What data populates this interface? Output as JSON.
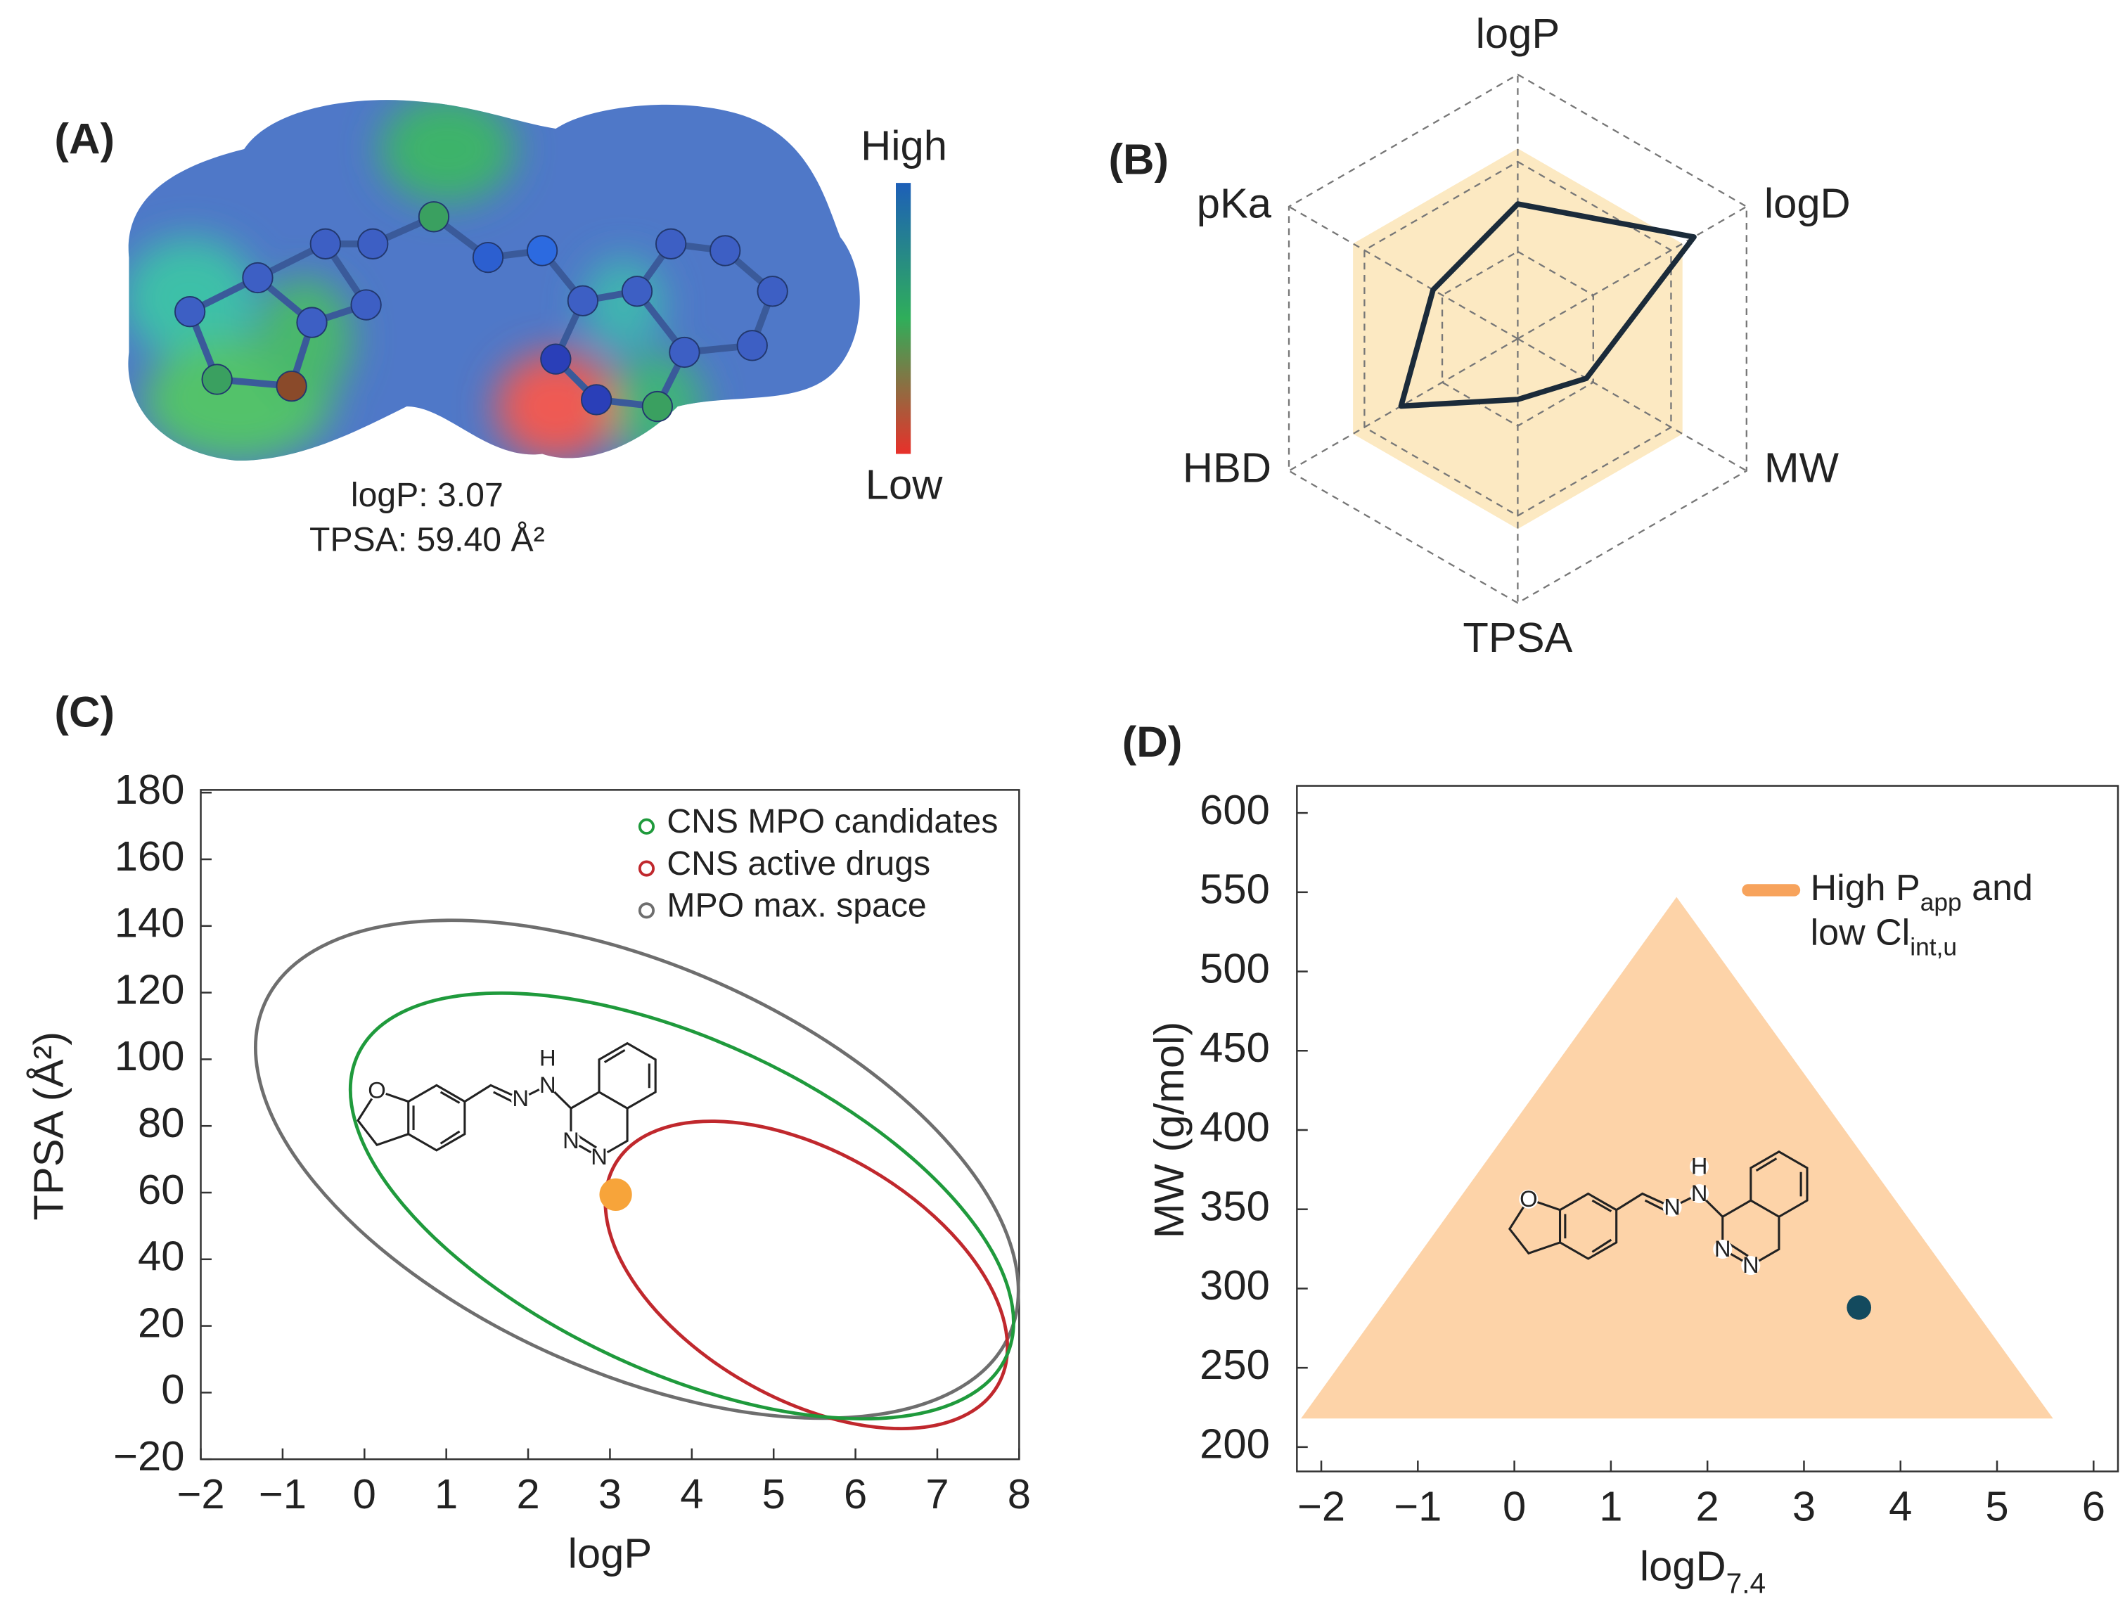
{
  "panel_a": {
    "label": "(A)",
    "colorbar": {
      "high": "High",
      "low": "Low"
    },
    "annotations": [
      "logP: 3.07",
      "TPSA: 59.40 Å²"
    ]
  },
  "structure": {
    "atoms": [
      "O",
      "N",
      "N",
      "H",
      "N",
      "N"
    ]
  },
  "chart_data": [
    {
      "type": "radar",
      "panel_label": "(B)",
      "axes": [
        "logP",
        "logD",
        "MW",
        "TPSA",
        "HBD",
        "pKa"
      ],
      "rlim": [
        0,
        1
      ],
      "rticks": [
        0.33,
        0.67,
        1
      ],
      "grid": true,
      "series": [
        {
          "color": "#fce9c2",
          "fill": true,
          "values": [
            0.72,
            0.72,
            0.72,
            0.72,
            0.72,
            0.72
          ]
        },
        {
          "color": "#1b2b3a",
          "values": [
            0.51,
            0.77,
            0.3,
            0.23,
            0.51,
            0.37
          ]
        }
      ]
    },
    {
      "type": "scatter",
      "panel_label": "(C)",
      "xlabel": "logP",
      "ylabel": "TPSA (Å²)",
      "xlim": [
        -2,
        8
      ],
      "xticks": [
        {
          "value": -2,
          "label": "−2"
        },
        {
          "value": -1,
          "label": "−1"
        },
        0,
        1,
        2,
        3,
        4,
        5,
        6,
        7,
        8
      ],
      "ylim": [
        -20,
        180
      ],
      "yticks": [
        {
          "value": -20,
          "label": "−20"
        },
        0,
        20,
        40,
        60,
        80,
        100,
        120,
        140,
        160,
        180
      ],
      "legend": "top right",
      "ellipses": [
        {
          "name": "CNS MPO candidates",
          "color": "#1f9a3c",
          "center": [
            3.88,
            56
          ],
          "rx": 4.37,
          "ry": 49.6,
          "angle": 25
        },
        {
          "name": "CNS active drugs",
          "color": "#c0282d",
          "center": [
            5.4,
            35.3
          ],
          "rx": 2.7,
          "ry": 37,
          "angle": 30
        },
        {
          "name": "MPO max. space",
          "color": "#6e6e6e",
          "center": [
            3.33,
            67
          ],
          "rx": 4.98,
          "ry": 61,
          "angle": 24
        }
      ],
      "points": {
        "color": "#f7a43a",
        "x": [
          3.07
        ],
        "values": [
          59.4
        ]
      }
    },
    {
      "type": "scatter",
      "panel_label": "(D)",
      "xlabel_parts": [
        {
          "text": "logD"
        },
        {
          "text": "7.4",
          "sub": true
        }
      ],
      "ylabel": "MW (g/mol)",
      "xlim": [
        -2,
        6
      ],
      "xticks": [
        {
          "value": -2,
          "label": "−2"
        },
        {
          "value": -1,
          "label": "−1"
        },
        0,
        1,
        2,
        3,
        4,
        5,
        6
      ],
      "ylim": [
        200,
        600
      ],
      "yticks": [
        200,
        250,
        300,
        350,
        400,
        450,
        500,
        550,
        600
      ],
      "legend": "top right",
      "region": {
        "color": "#fdd3a8",
        "legend_color": "#f7a35c",
        "x": [
          -2.21,
          5.58,
          1.68
        ],
        "values": [
          218,
          218,
          547
        ],
        "name_parts": [
          {
            "text": "High P"
          },
          {
            "text": "app",
            "sub": true
          },
          {
            "text": " and"
          },
          {
            "text": "low Cl",
            "newline": true
          },
          {
            "text": "int,u",
            "sub": true
          }
        ]
      },
      "points": {
        "color": "#134a5e",
        "x": [
          3.57
        ],
        "values": [
          288
        ]
      }
    }
  ]
}
